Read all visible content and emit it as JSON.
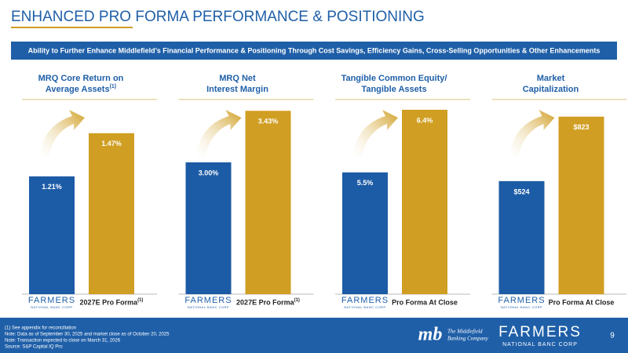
{
  "title": "ENHANCED PRO FORMA PERFORMANCE & POSITIONING",
  "banner": "Ability to Further Enhance Middlefield’s Financial Performance & Positioning Through Cost Savings, Efficiency Gains, Cross-Selling Opportunities & Other Enhancements",
  "logo": {
    "name": "FARMERS",
    "sub": "NATIONAL BANC CORP"
  },
  "chart_data": [
    {
      "type": "bar",
      "title": [
        "MRQ Core Return on",
        "Average Assets"
      ],
      "title_note": "(1)",
      "categories": [
        null,
        "2027E Pro Forma"
      ],
      "category_note": "(1)",
      "values": [
        1.21,
        1.47
      ],
      "value_labels": [
        "1.21%",
        "1.47%"
      ],
      "colors": [
        "#1c5ba6",
        "#d09e22"
      ],
      "ylim": [
        0.5,
        1.8
      ]
    },
    {
      "type": "bar",
      "title": [
        "MRQ Net",
        "Interest Margin"
      ],
      "categories": [
        null,
        "2027E Pro Forma"
      ],
      "category_note": "(1)",
      "values": [
        3.0,
        3.43
      ],
      "value_labels": [
        "3.00%",
        "3.43%"
      ],
      "colors": [
        "#1c5ba6",
        "#d09e22"
      ],
      "ylim": [
        1.9,
        3.7
      ]
    },
    {
      "type": "bar",
      "title": [
        "Tangible Common Equity/",
        "Tangible Assets"
      ],
      "categories": [
        null,
        "Pro Forma At Close"
      ],
      "values": [
        5.5,
        6.4
      ],
      "value_labels": [
        "5.5%",
        "6.4%"
      ],
      "colors": [
        "#1c5ba6",
        "#d09e22"
      ],
      "ylim": [
        3.75,
        6.85
      ]
    },
    {
      "type": "bar",
      "title": [
        "Market",
        "Capitalization"
      ],
      "categories": [
        null,
        "Pro Forma At Close"
      ],
      "values": [
        524,
        823
      ],
      "value_labels": [
        "$524",
        "$823"
      ],
      "colors": [
        "#1c5ba6",
        "#d09e22"
      ],
      "ylim": [
        0,
        1000
      ]
    }
  ],
  "footer": {
    "notes": [
      "(1) See appendix for reconciliation",
      "Note: Data as of September 30, 2025 and market close as of October 20, 2025",
      "Note: Transaction expected to close on March 31, 2026",
      "Source: S&P Capital IQ Pro"
    ],
    "partner": {
      "mark": "mb",
      "name": [
        "The Middlefield",
        "Banking Company"
      ]
    },
    "page": "9"
  }
}
